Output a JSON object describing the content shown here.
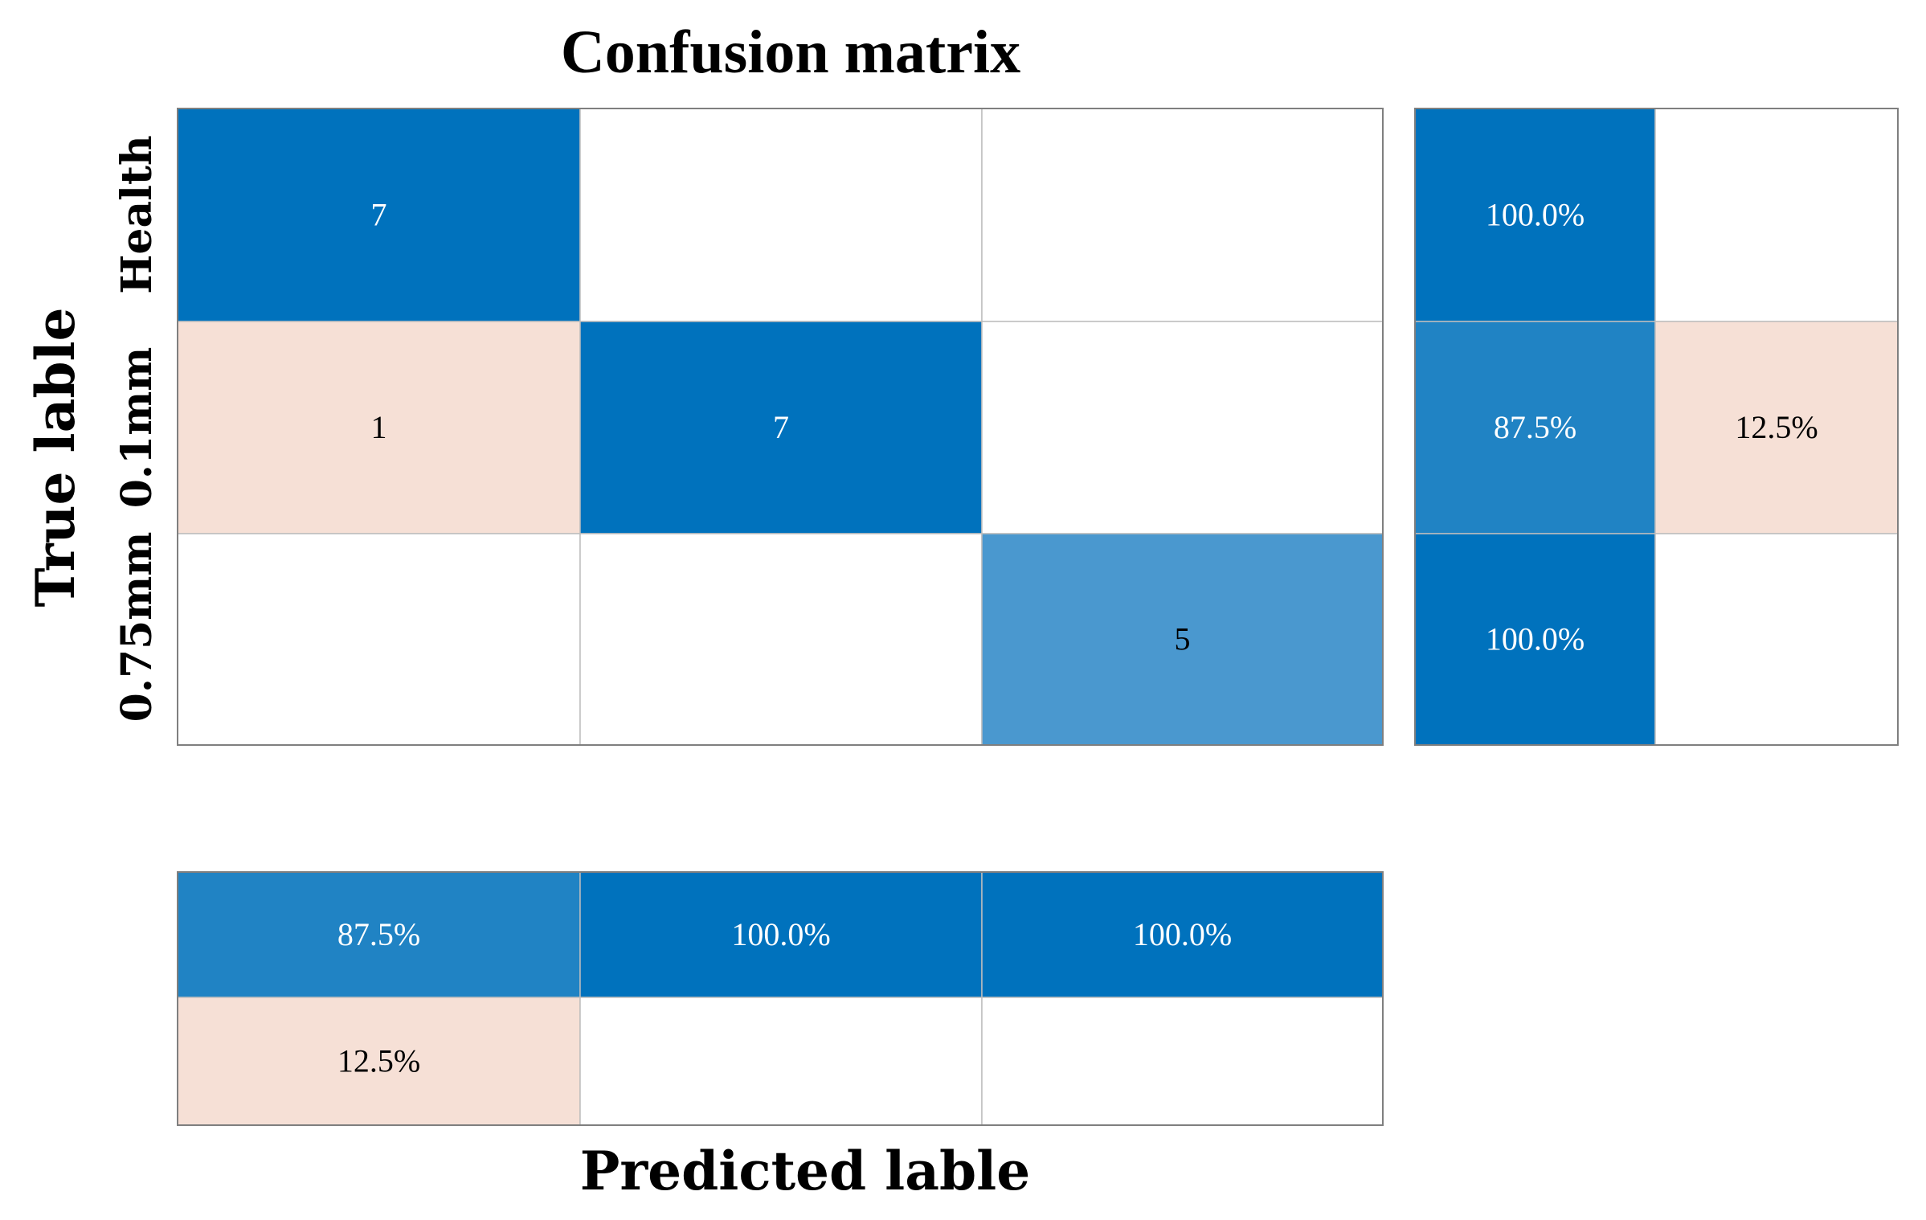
{
  "chart_data": {
    "type": "heatmap",
    "title": "Confusion matrix",
    "xlabel": "Predicted lable",
    "ylabel": "True lable",
    "row_labels": [
      "Health",
      "0.1mm",
      "0.75mm"
    ],
    "matrix": [
      [
        7,
        0,
        0
      ],
      [
        1,
        7,
        0
      ],
      [
        0,
        0,
        5
      ]
    ],
    "row_summary": [
      [
        "100.0%",
        ""
      ],
      [
        "87.5%",
        "12.5%"
      ],
      [
        "100.0%",
        ""
      ]
    ],
    "column_summary": [
      [
        "87.5%",
        "100.0%",
        "100.0%"
      ],
      [
        "12.5%",
        "",
        ""
      ]
    ],
    "colors": {
      "dark_blue": "#0072BD",
      "mid_blue": "#2083C4",
      "light_blue": "#4A98CF",
      "pink": "#F6E0D6",
      "grid": "#BDBDBD",
      "border": "#7F7F7F"
    }
  }
}
